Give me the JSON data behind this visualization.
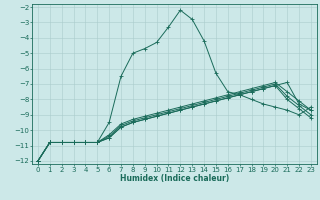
{
  "title": "",
  "xlabel": "Humidex (Indice chaleur)",
  "ylabel": "",
  "background_color": "#cce8e8",
  "grid_color": "#aacccc",
  "line_color": "#1a6b5a",
  "xlim": [
    -0.5,
    23.5
  ],
  "ylim": [
    -12.2,
    -1.8
  ],
  "xticks": [
    0,
    1,
    2,
    3,
    4,
    5,
    6,
    7,
    8,
    9,
    10,
    11,
    12,
    13,
    14,
    15,
    16,
    17,
    18,
    19,
    20,
    21,
    22,
    23
  ],
  "yticks": [
    -12,
    -11,
    -10,
    -9,
    -8,
    -7,
    -6,
    -5,
    -4,
    -3,
    -2
  ],
  "series": [
    {
      "x": [
        0,
        1,
        2,
        3,
        4,
        5,
        6,
        7,
        8,
        9,
        10,
        11,
        12,
        13,
        14,
        15,
        16,
        17,
        18,
        19,
        20,
        21,
        22,
        23
      ],
      "y": [
        -12.0,
        -10.8,
        -10.8,
        -10.8,
        -10.8,
        -10.8,
        -10.5,
        -9.8,
        -9.5,
        -9.3,
        -9.1,
        -8.9,
        -8.7,
        -8.5,
        -8.3,
        -8.1,
        -7.9,
        -7.7,
        -7.5,
        -7.3,
        -7.1,
        -6.9,
        -8.3,
        -8.7
      ]
    },
    {
      "x": [
        0,
        1,
        2,
        3,
        4,
        5,
        6,
        7,
        8,
        9,
        10,
        11,
        12,
        13,
        14,
        15,
        16,
        17,
        18,
        19,
        20,
        21,
        22,
        23
      ],
      "y": [
        -12.0,
        -10.8,
        -10.8,
        -10.8,
        -10.8,
        -10.8,
        -10.5,
        -9.8,
        -9.5,
        -9.3,
        -9.1,
        -8.9,
        -8.7,
        -8.5,
        -8.3,
        -8.1,
        -7.9,
        -7.7,
        -7.5,
        -7.3,
        -7.1,
        -8.0,
        -8.6,
        -9.2
      ]
    },
    {
      "x": [
        0,
        1,
        2,
        3,
        4,
        5,
        6,
        7,
        8,
        9,
        10,
        11,
        12,
        13,
        14,
        15,
        16,
        17,
        18,
        19,
        20,
        21,
        22,
        23
      ],
      "y": [
        -12.0,
        -10.8,
        -10.8,
        -10.8,
        -10.8,
        -10.8,
        -10.4,
        -9.7,
        -9.4,
        -9.2,
        -9.0,
        -8.8,
        -8.6,
        -8.4,
        -8.2,
        -8.0,
        -7.8,
        -7.6,
        -7.4,
        -7.2,
        -7.0,
        -7.8,
        -8.4,
        -9.0
      ]
    },
    {
      "x": [
        0,
        1,
        2,
        3,
        4,
        5,
        6,
        7,
        8,
        9,
        10,
        11,
        12,
        13,
        14,
        15,
        16,
        17,
        18,
        19,
        20,
        21,
        22,
        23
      ],
      "y": [
        -12.0,
        -10.8,
        -10.8,
        -10.8,
        -10.8,
        -10.8,
        -10.3,
        -9.6,
        -9.3,
        -9.1,
        -8.9,
        -8.7,
        -8.5,
        -8.3,
        -8.1,
        -7.9,
        -7.7,
        -7.5,
        -7.3,
        -7.1,
        -6.9,
        -7.5,
        -8.1,
        -8.7
      ]
    },
    {
      "x": [
        0,
        1,
        2,
        3,
        4,
        5,
        6,
        7,
        8,
        9,
        10,
        11,
        12,
        13,
        14,
        15,
        16,
        17,
        18,
        19,
        20,
        21,
        22,
        23
      ],
      "y": [
        -12.0,
        -10.8,
        -10.8,
        -10.8,
        -10.8,
        -10.8,
        -9.5,
        -6.5,
        -5.0,
        -4.7,
        -4.3,
        -3.3,
        -2.2,
        -2.8,
        -4.2,
        -6.3,
        -7.5,
        -7.7,
        -8.0,
        -8.3,
        -8.5,
        -8.7,
        -9.0,
        -8.5
      ]
    }
  ],
  "xlabel_fontsize": 5.5,
  "tick_fontsize": 5.0,
  "linewidth": 0.7,
  "markersize": 2.5,
  "markeredgewidth": 0.6
}
